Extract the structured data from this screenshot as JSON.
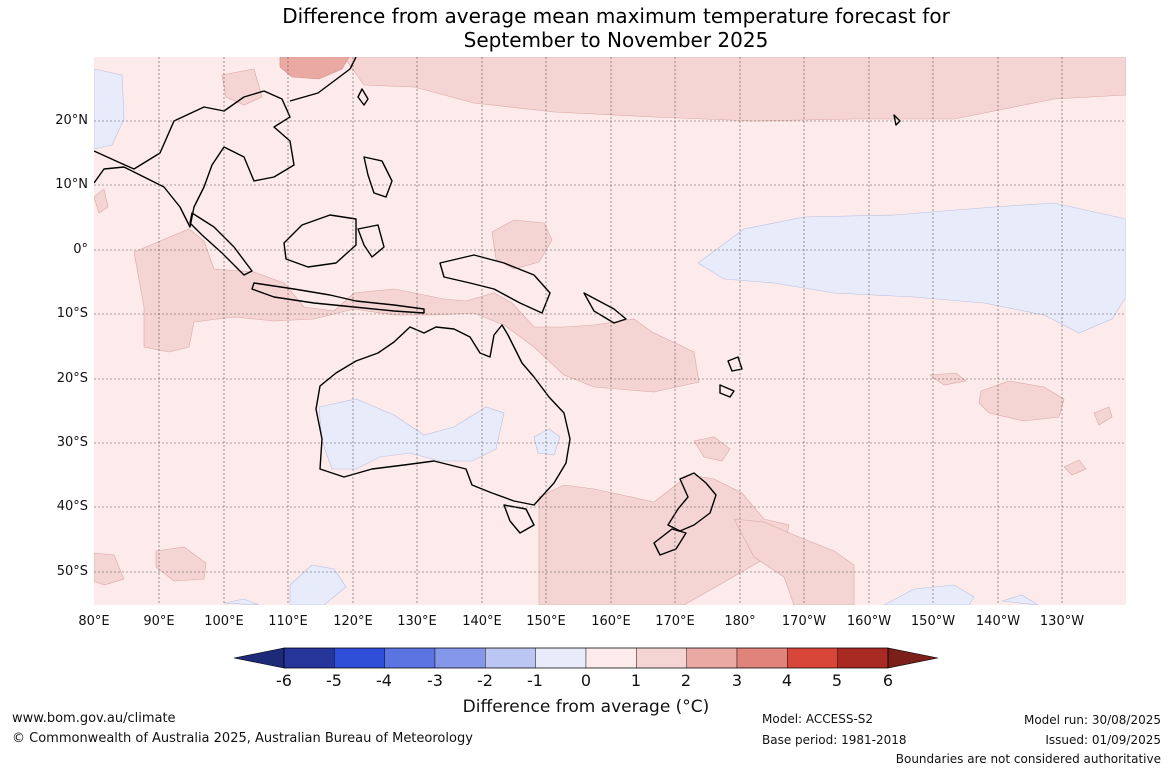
{
  "title": {
    "line1": "Difference from average mean maximum temperature forecast for",
    "line2": "September to November 2025"
  },
  "map": {
    "lat_labels": [
      "20°N",
      "10°N",
      "0°",
      "10°S",
      "20°S",
      "30°S",
      "40°S",
      "50°S"
    ],
    "lon_labels": [
      "80°E",
      "90°E",
      "100°E",
      "110°E",
      "120°E",
      "130°E",
      "140°E",
      "150°E",
      "160°E",
      "170°E",
      "180°",
      "170°W",
      "160°W",
      "150°W",
      "140°W",
      "130°W"
    ]
  },
  "colorbar": {
    "ticks": [
      "-6",
      "-5",
      "-4",
      "-3",
      "-2",
      "-1",
      "0",
      "1",
      "2",
      "3",
      "4",
      "5",
      "6"
    ],
    "colors": [
      "#25359a",
      "#2f4fd8",
      "#5b74e2",
      "#8597ea",
      "#bcc6f2",
      "#e8ebfa",
      "#fcebea",
      "#f5d5d3",
      "#eaa9a2",
      "#e0837a",
      "#d8463a",
      "#a82a22"
    ],
    "low_extend_color": "#1c2a78",
    "high_extend_color": "#7a1f19",
    "label": "Difference from average (°C)"
  },
  "footer": {
    "website": "www.bom.gov.au/climate",
    "copyright": "© Commonwealth of Australia 2025, Australian Bureau of Meteorology",
    "model": "Model: ACCESS-S2",
    "base_period": "Base period: 1981-2018",
    "model_run": "Model run: 30/08/2025",
    "issued": "Issued: 01/09/2025",
    "disclaimer": "Boundaries are not considered authoritative"
  }
}
